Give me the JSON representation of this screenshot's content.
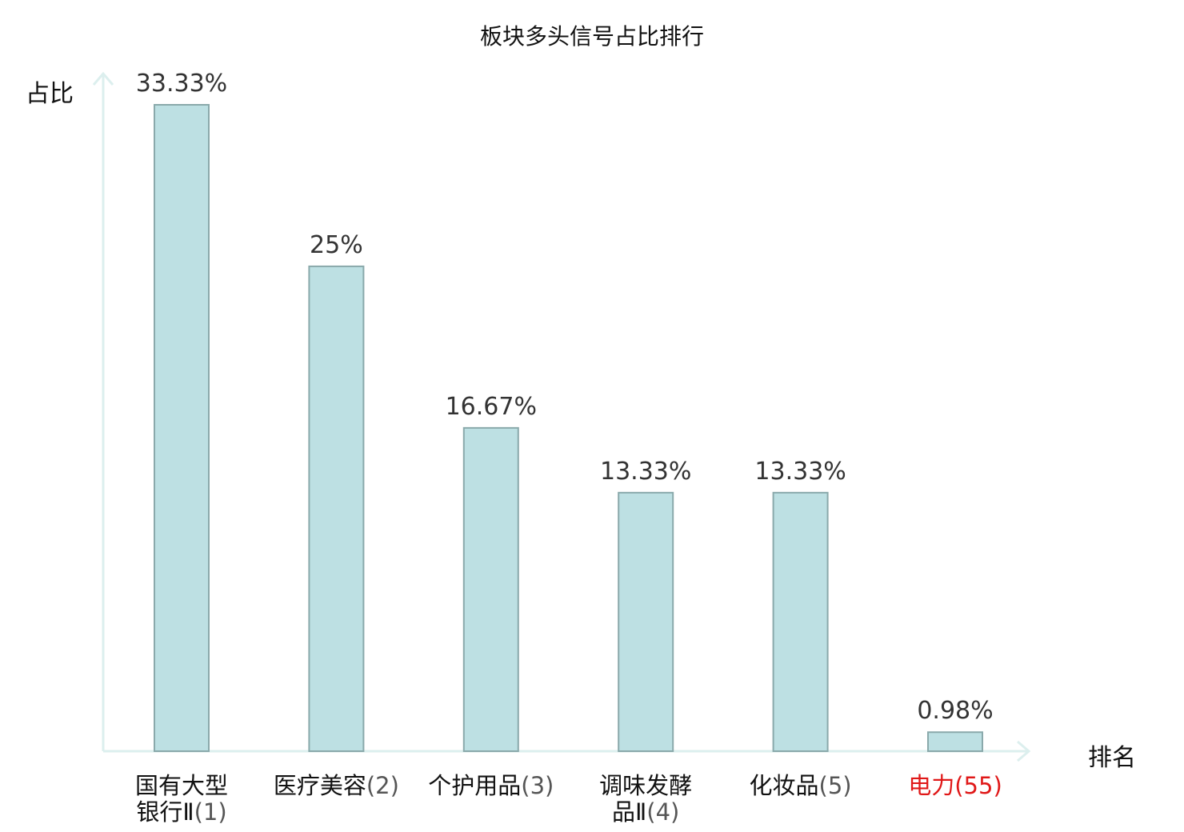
{
  "chart_data": {
    "type": "bar",
    "title": "板块多头信号占比排行",
    "ylabel": "占比",
    "xlabel": "排名",
    "ylim": [
      0,
      35
    ],
    "grid": false,
    "categories": [
      {
        "name_lines": [
          "国有大型",
          "银行Ⅱ"
        ],
        "rank": "(1)",
        "highlight": false
      },
      {
        "name_lines": [
          "医疗美容"
        ],
        "rank": "(2)",
        "highlight": false
      },
      {
        "name_lines": [
          "个护用品"
        ],
        "rank": "(3)",
        "highlight": false
      },
      {
        "name_lines": [
          "调味发酵",
          "品Ⅱ"
        ],
        "rank": "(4)",
        "highlight": false
      },
      {
        "name_lines": [
          "化妆品"
        ],
        "rank": "(5)",
        "highlight": false
      },
      {
        "name_lines": [
          "电力"
        ],
        "rank": "(55)",
        "highlight": true
      }
    ],
    "values": [
      33.33,
      25,
      16.67,
      13.33,
      13.33,
      0.98
    ],
    "value_labels": [
      "33.33%",
      "25%",
      "16.67%",
      "13.33%",
      "13.33%",
      "0.98%"
    ]
  },
  "colors": {
    "bar_fill": "#bde0e3",
    "bar_stroke": "#8aa9ab",
    "axis": "#dcefee",
    "highlight": "#e01818"
  }
}
